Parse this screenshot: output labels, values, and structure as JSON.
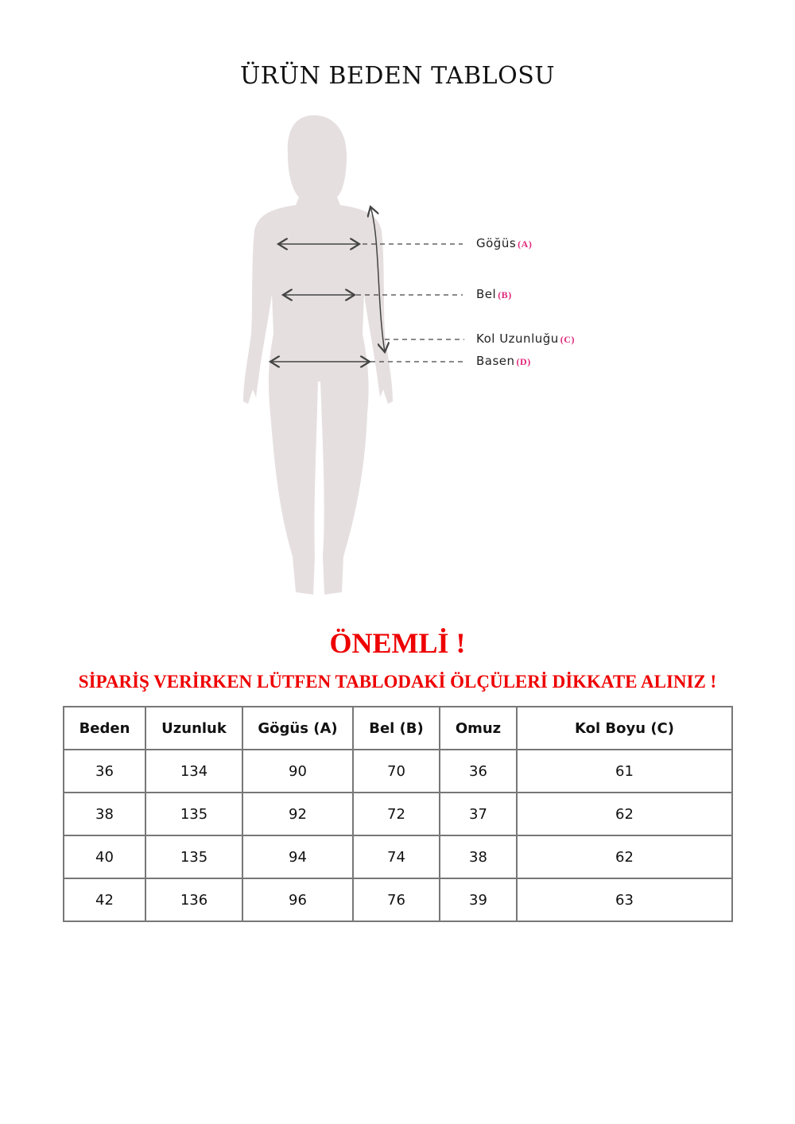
{
  "title": "ÜRÜN BEDEN TABLOSU",
  "figure": {
    "labels": [
      {
        "text": "Göğüs",
        "code": "(A)"
      },
      {
        "text": "Bel",
        "code": "(B)"
      },
      {
        "text": "Kol Uzunluğu",
        "code": "(C)"
      },
      {
        "text": "Basen",
        "code": "(D)"
      }
    ],
    "silhouette_color": "#e6dfe0",
    "code_color": "#e0267a"
  },
  "important": "ÖNEMLİ !",
  "notice": "SİPARİŞ VERİRKEN LÜTFEN TABLODAKİ ÖLÇÜLERİ DİKKATE ALINIZ !",
  "table": {
    "headers": [
      "Beden",
      "Uzunluk",
      "Gögüs (A)",
      "Bel (B)",
      "Omuz",
      "Kol Boyu (C)"
    ],
    "rows": [
      [
        "36",
        "134",
        "90",
        "70",
        "36",
        "61"
      ],
      [
        "38",
        "135",
        "92",
        "72",
        "37",
        "62"
      ],
      [
        "40",
        "135",
        "94",
        "74",
        "38",
        "62"
      ],
      [
        "42",
        "136",
        "96",
        "76",
        "39",
        "63"
      ]
    ]
  }
}
